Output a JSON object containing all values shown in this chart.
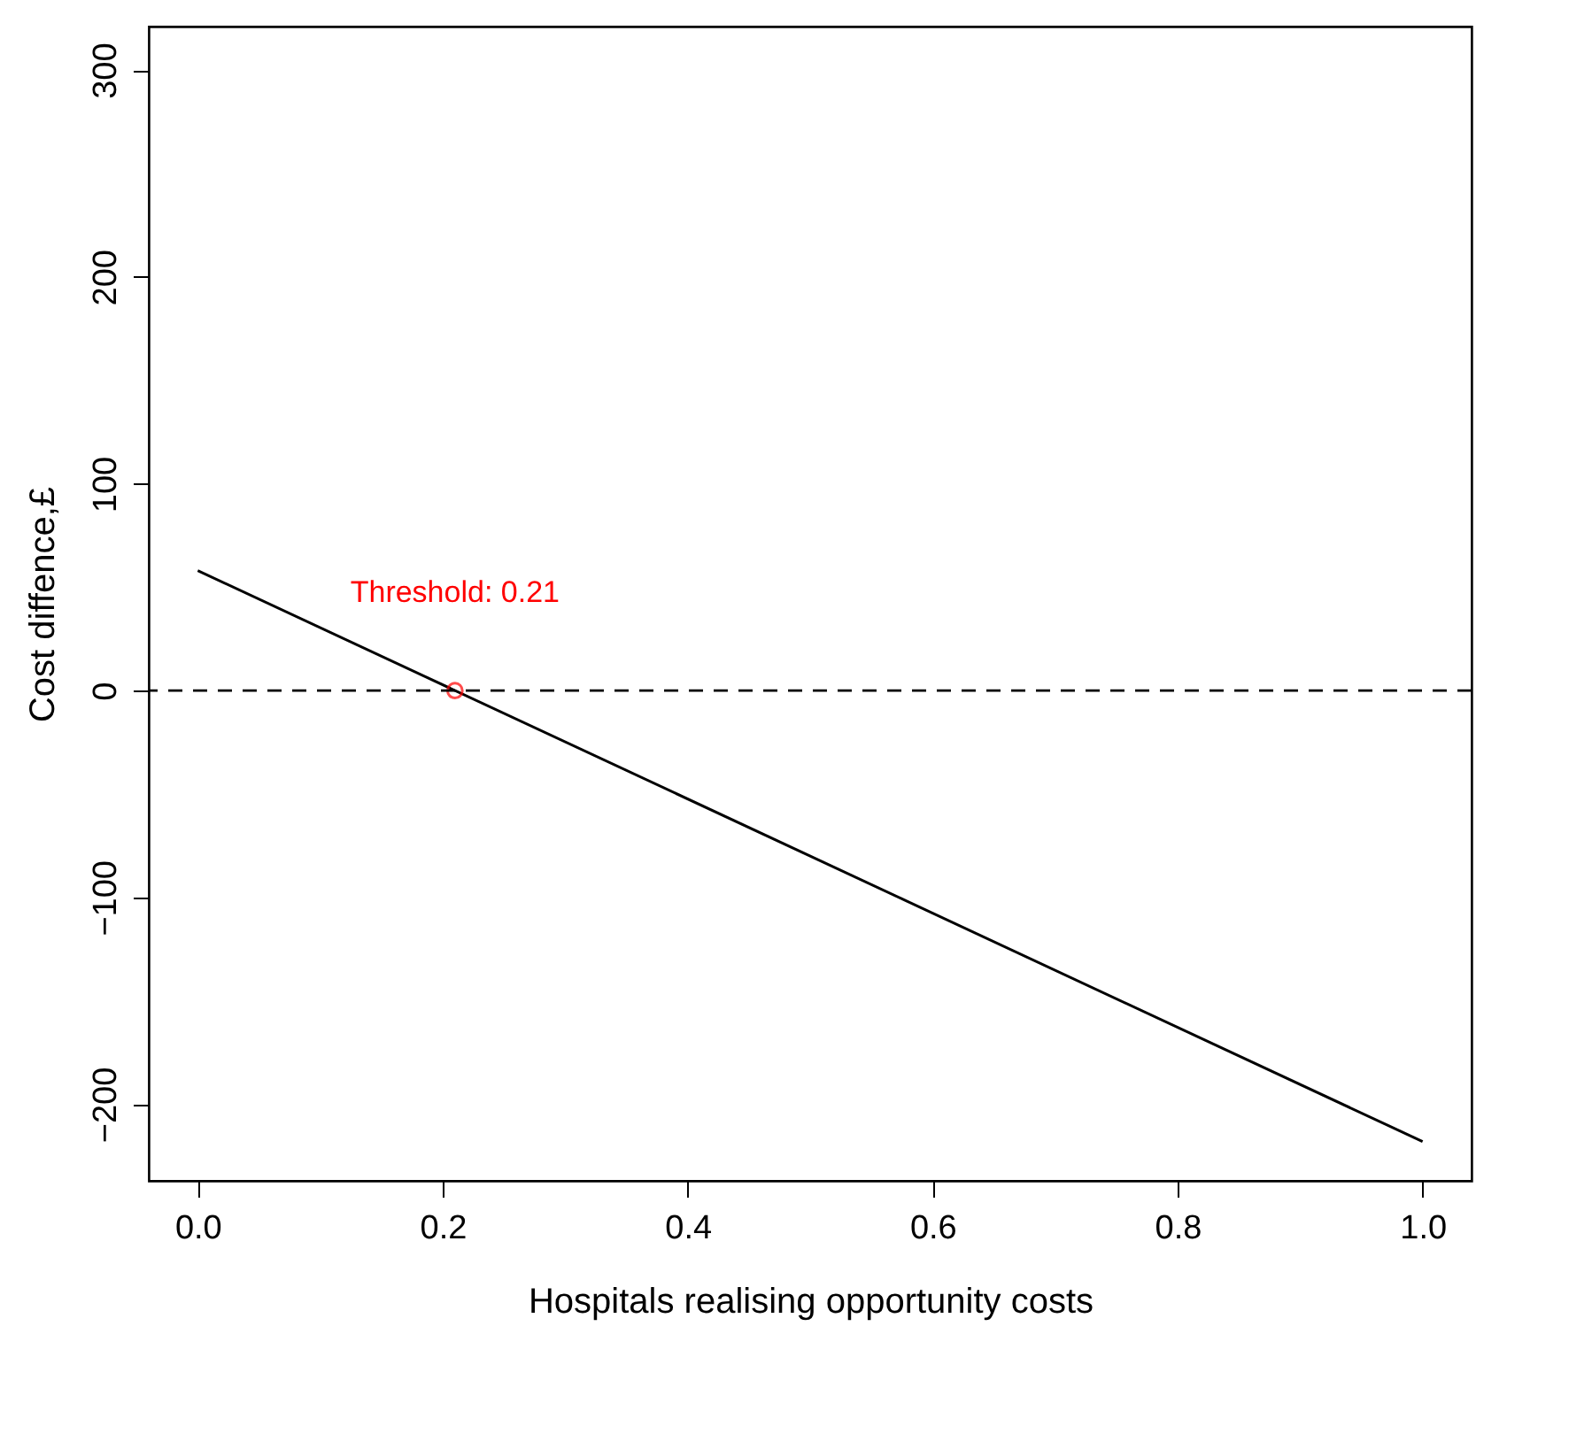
{
  "chart_data": {
    "type": "line",
    "xlabel": "Hospitals realising opportunity costs",
    "ylabel": "Cost diffence,£",
    "series": [
      {
        "type": "line",
        "color": "#000000",
        "x": [
          0,
          1
        ],
        "values": [
          58,
          -218
        ]
      },
      {
        "type": "scatter",
        "marker": "circle",
        "color": "#ff0000",
        "x": [
          0.21
        ],
        "values": [
          0
        ]
      }
    ],
    "xlim": [
      -0.04,
      1.04
    ],
    "ylim": [
      -237,
      321
    ],
    "xticks": [
      {
        "value": 0,
        "label": "0.0"
      },
      {
        "value": 0.2,
        "label": "0.2"
      },
      {
        "value": 0.4,
        "label": "0.4"
      },
      {
        "value": 0.6,
        "label": "0.6"
      },
      {
        "value": 0.8,
        "label": "0.8"
      },
      {
        "value": 1,
        "label": "1.0"
      }
    ],
    "yticks": [
      -200,
      -100,
      0,
      100,
      200,
      300
    ],
    "ref_lines": [
      {
        "axis": "y",
        "value": 0,
        "line_style": "dashed",
        "color": "#000000"
      }
    ],
    "annotations": [
      {
        "text": "Threshold: 0.21",
        "x": 0.21,
        "y": 0
      }
    ],
    "grid": false
  }
}
